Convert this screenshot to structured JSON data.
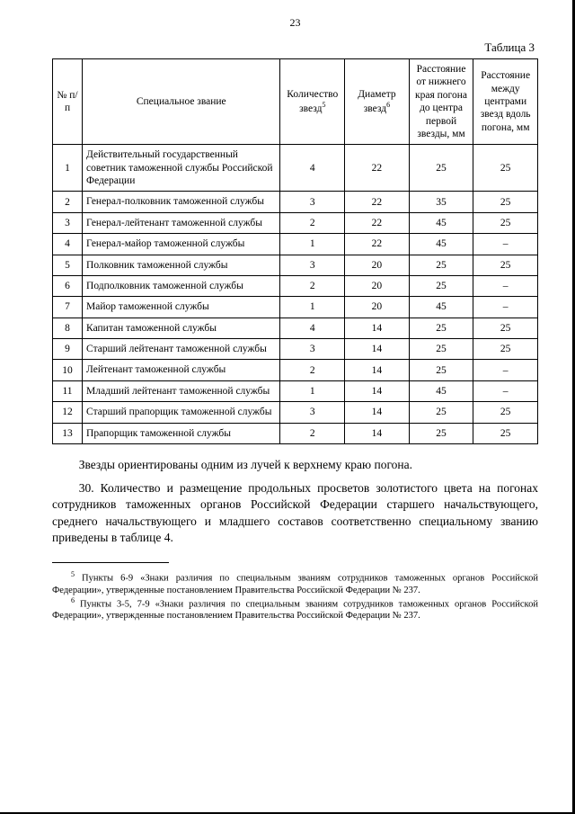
{
  "page_number": "23",
  "table_label": "Таблица 3",
  "table": {
    "columns": [
      "№ п/п",
      "Специальное звание",
      "Количество звезд",
      "Диаметр звезд",
      "Расстояние от нижнего края погона до центра первой звезды, мм",
      "Расстояние между центрами звезд вдоль погона, мм"
    ],
    "fn_markers": {
      "col3": "5",
      "col4": "6"
    },
    "rows": [
      [
        "1",
        "Действительный государственный советник таможенной службы Российской Федерации",
        "4",
        "22",
        "25",
        "25"
      ],
      [
        "2",
        "Генерал-полковник таможенной службы",
        "3",
        "22",
        "35",
        "25"
      ],
      [
        "3",
        "Генерал-лейтенант таможенной службы",
        "2",
        "22",
        "45",
        "25"
      ],
      [
        "4",
        "Генерал-майор таможенной службы",
        "1",
        "22",
        "45",
        "–"
      ],
      [
        "5",
        "Полковник таможенной службы",
        "3",
        "20",
        "25",
        "25"
      ],
      [
        "6",
        "Подполковник таможенной службы",
        "2",
        "20",
        "25",
        "–"
      ],
      [
        "7",
        "Майор таможенной службы",
        "1",
        "20",
        "45",
        "–"
      ],
      [
        "8",
        "Капитан таможенной службы",
        "4",
        "14",
        "25",
        "25"
      ],
      [
        "9",
        "Старший лейтенант таможенной службы",
        "3",
        "14",
        "25",
        "25"
      ],
      [
        "10",
        "Лейтенант таможенной службы",
        "2",
        "14",
        "25",
        "–"
      ],
      [
        "11",
        "Младший лейтенант таможенной службы",
        "1",
        "14",
        "45",
        "–"
      ],
      [
        "12",
        "Старший прапорщик таможенной службы",
        "3",
        "14",
        "25",
        "25"
      ],
      [
        "13",
        "Прапорщик таможенной службы",
        "2",
        "14",
        "25",
        "25"
      ]
    ]
  },
  "paragraphs": {
    "p1": "Звезды ориентированы одним из лучей к верхнему краю погона.",
    "p2": "30. Количество и размещение продольных просветов золотистого цвета на погонах сотрудников таможенных органов Российской Федерации старшего начальствующего, среднего начальствующего и младшего составов соответственно специальному званию приведены в таблице 4."
  },
  "footnotes": {
    "f5_marker": "5",
    "f5": " Пункты 6-9 «Знаки различия по специальным званиям сотрудников таможенных органов Российской Федерации», утвержденные постановлением Правительства Российской Федерации № 237.",
    "f6_marker": "6",
    "f6": " Пункты 3-5, 7-9 «Знаки различия по специальным званиям сотрудников таможенных органов Российской Федерации», утвержденные постановлением Правительства Российской Федерации № 237."
  }
}
